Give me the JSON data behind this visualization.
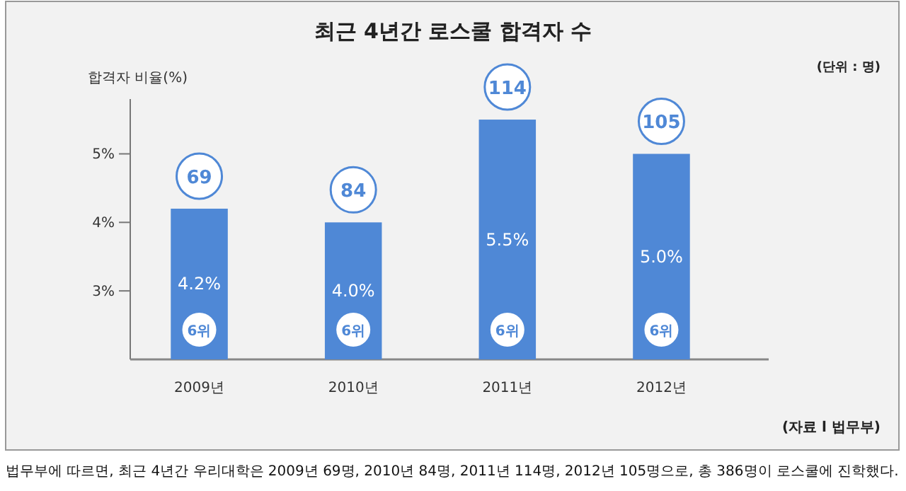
{
  "chart_data": {
    "type": "bar",
    "title": "최근 4년간 로스쿨 합격자 수",
    "ylabel": "합격자 비율(%)",
    "categories": [
      "2009년",
      "2010년",
      "2011년",
      "2012년"
    ],
    "values": [
      4.2,
      4.0,
      5.5,
      5.0
    ],
    "color": "#4f88d6",
    "value_labels": [
      "4.2%",
      "4.0%",
      "5.5%",
      "5.0%"
    ],
    "ylim": [
      2,
      5.8
    ],
    "yticks": [
      {
        "value": 3,
        "label": "3%"
      },
      {
        "value": 4,
        "label": "4%"
      },
      {
        "value": 5,
        "label": "5%"
      }
    ],
    "annotations": [
      {
        "text": "69",
        "x": "2009년"
      },
      {
        "text": "84",
        "x": "2010년"
      },
      {
        "text": "114",
        "x": "2011년"
      },
      {
        "text": "105",
        "x": "2012년"
      },
      {
        "text": "6위",
        "x": "2009년"
      },
      {
        "text": "6위",
        "x": "2010년"
      },
      {
        "text": "6위",
        "x": "2011년"
      },
      {
        "text": "6위",
        "x": "2012년"
      },
      "(단위 : 명)",
      "(자료 l 법무부)",
      "법무부에 따르면, 최근 4년간 우리대학은 2009년 69명, 2010년 84명, 2011년 114명, 2012년 105명으로, 총 386명이 로스쿨에 진학했다."
    ]
  }
}
